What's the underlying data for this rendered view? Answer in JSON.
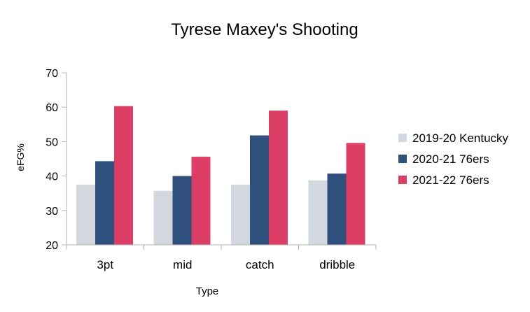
{
  "chart_data": {
    "type": "bar",
    "title": "Tyrese Maxey's Shooting",
    "xlabel": "Type",
    "ylabel": "eFG%",
    "ylim": [
      20,
      70
    ],
    "yticks": [
      20,
      30,
      40,
      50,
      60,
      70
    ],
    "grid": false,
    "legend_position": "right",
    "categories": [
      "3pt",
      "mid",
      "catch",
      "dribble"
    ],
    "series": [
      {
        "name": "2019-20 Kentucky",
        "color": "#d2d8dd",
        "values": [
          37.5,
          35.7,
          37.5,
          38.7
        ]
      },
      {
        "name": "2020-21 76ers",
        "color": "#2f4f7c",
        "values": [
          44.3,
          40.0,
          51.8,
          40.7
        ]
      },
      {
        "name": "2021-22 76ers",
        "color": "#dc3e66",
        "values": [
          60.3,
          45.6,
          59.0,
          49.6
        ]
      }
    ]
  }
}
